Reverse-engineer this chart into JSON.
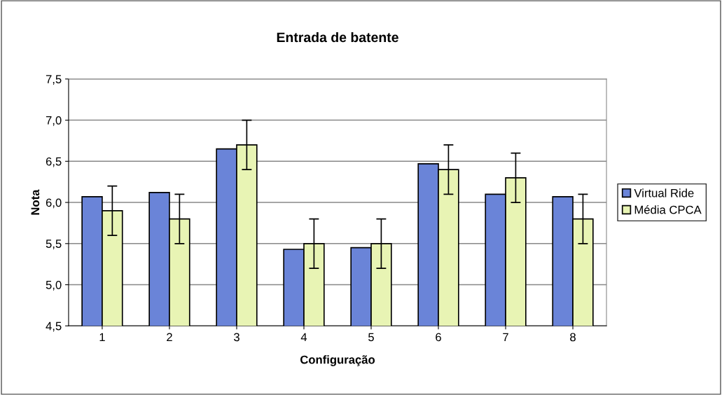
{
  "chart_data": {
    "type": "bar",
    "title": "Entrada de batente",
    "xlabel": "Configuração",
    "ylabel": "Nota",
    "categories": [
      "1",
      "2",
      "3",
      "4",
      "5",
      "6",
      "7",
      "8"
    ],
    "series": [
      {
        "name": "Virtual Ride",
        "color": "#6a84d8",
        "values": [
          6.07,
          6.12,
          6.65,
          5.43,
          5.45,
          6.47,
          6.1,
          6.07
        ]
      },
      {
        "name": "Média CPCA",
        "color": "#e8f4b4",
        "values": [
          5.9,
          5.8,
          6.7,
          5.5,
          5.5,
          6.4,
          6.3,
          5.8
        ],
        "errors": [
          0.3,
          0.3,
          0.3,
          0.3,
          0.3,
          0.3,
          0.3,
          0.3
        ]
      }
    ],
    "ylim": [
      4.5,
      7.5
    ],
    "yticks": [
      {
        "value": 4.5,
        "label": "4,5"
      },
      {
        "value": 5.0,
        "label": "5,0"
      },
      {
        "value": 5.5,
        "label": "5,5"
      },
      {
        "value": 6.0,
        "label": "6,0"
      },
      {
        "value": 6.5,
        "label": "6,5"
      },
      {
        "value": 7.0,
        "label": "7,0"
      },
      {
        "value": 7.5,
        "label": "7,5"
      }
    ],
    "grid": "y",
    "legend": "right"
  }
}
